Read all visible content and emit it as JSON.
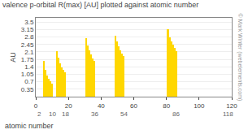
{
  "chart_data": {
    "type": "bar",
    "title": "valence p-orbital R(max) [AU] plotted against atomic number",
    "xlabel": "atomic number",
    "ylabel": "AU",
    "watermark": "© Mark Winter (webelements.com)",
    "x": [
      5,
      6,
      7,
      8,
      9,
      10,
      13,
      14,
      15,
      16,
      17,
      18,
      31,
      32,
      33,
      34,
      35,
      36,
      49,
      50,
      51,
      52,
      53,
      54,
      81,
      82,
      83,
      84,
      85,
      86
    ],
    "values": [
      1.67,
      1.24,
      1.0,
      0.85,
      0.72,
      0.62,
      2.15,
      1.82,
      1.57,
      1.39,
      1.24,
      1.13,
      2.74,
      2.42,
      2.17,
      1.97,
      1.8,
      1.66,
      2.87,
      2.6,
      2.38,
      2.19,
      2.03,
      1.89,
      3.15,
      2.8,
      2.6,
      2.43,
      2.28,
      2.14
    ],
    "color": "#FFD700",
    "xlim": [
      0,
      120
    ],
    "ylim": [
      0,
      3.7
    ],
    "xticks": [
      0,
      20,
      40,
      60,
      80,
      100,
      120
    ],
    "yticks": [
      0.35,
      0.7,
      1.05,
      1.4,
      1.75,
      2.1,
      2.45,
      2.8,
      3.15,
      3.5
    ],
    "grid": "y",
    "annotations": [
      {
        "x": 2,
        "text": "2"
      },
      {
        "x": 10,
        "text": "10"
      },
      {
        "x": 18,
        "text": "18"
      },
      {
        "x": 36,
        "text": "36"
      },
      {
        "x": 54,
        "text": "54"
      },
      {
        "x": 86,
        "text": "86"
      },
      {
        "x": 118,
        "text": "118"
      }
    ]
  }
}
